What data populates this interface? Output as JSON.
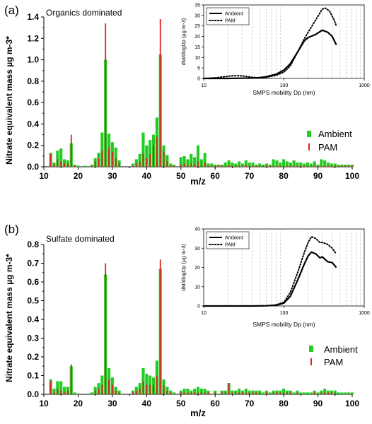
{
  "figure": {
    "panels": [
      {
        "panel_label": "(a)",
        "subtitle": "Organics dominated",
        "chart_data": {
          "type": "bar",
          "xlabel": "m/z",
          "ylabel": "Nitrate equivalent mass µg m-3*",
          "xlim": [
            10,
            100
          ],
          "ylim": [
            0,
            1.4
          ],
          "x_ticks": [
            10,
            20,
            30,
            40,
            50,
            60,
            70,
            80,
            90,
            100
          ],
          "y_ticks": [
            0.0,
            0.2,
            0.4,
            0.6,
            0.8,
            1.0,
            1.2,
            1.4
          ],
          "legend": {
            "placement": "right",
            "entries": [
              "Ambient",
              "PAM"
            ]
          },
          "x": [
            12,
            13,
            14,
            15,
            16,
            17,
            18,
            19,
            20,
            22,
            24,
            25,
            26,
            27,
            28,
            29,
            30,
            31,
            32,
            36,
            37,
            38,
            39,
            40,
            41,
            42,
            43,
            44,
            45,
            46,
            47,
            48,
            50,
            51,
            52,
            53,
            54,
            55,
            56,
            57,
            58,
            59,
            60,
            61,
            62,
            63,
            64,
            65,
            66,
            67,
            68,
            69,
            70,
            71,
            72,
            73,
            74,
            75,
            76,
            77,
            78,
            79,
            80,
            81,
            82,
            83,
            84,
            85,
            86,
            87,
            88,
            89,
            90,
            91,
            92,
            93,
            94,
            95,
            96,
            97,
            98,
            99,
            100
          ],
          "series": [
            {
              "name": "Ambient",
              "color": "#22cc22",
              "values": [
                0.13,
                0.04,
                0.15,
                0.17,
                0.07,
                0.06,
                0.22,
                0.02,
                0.01,
                0.01,
                0.02,
                0.08,
                0.13,
                0.32,
                1.0,
                0.31,
                0.23,
                0.18,
                0.06,
                0.03,
                0.07,
                0.12,
                0.32,
                0.2,
                0.25,
                0.3,
                0.46,
                1.05,
                0.2,
                0.11,
                0.03,
                0.02,
                0.09,
                0.1,
                0.07,
                0.12,
                0.09,
                0.2,
                0.07,
                0.13,
                0.03,
                0.03,
                0.02,
                0.02,
                0.02,
                0.04,
                0.06,
                0.04,
                0.03,
                0.05,
                0.03,
                0.06,
                0.04,
                0.04,
                0.02,
                0.03,
                0.02,
                0.03,
                0.02,
                0.07,
                0.06,
                0.04,
                0.07,
                0.05,
                0.04,
                0.06,
                0.04,
                0.04,
                0.03,
                0.04,
                0.03,
                0.05,
                0.02,
                0.07,
                0.06,
                0.04,
                0.03,
                0.03,
                0.02,
                0.02,
                0.02,
                0.02,
                0.02
              ]
            },
            {
              "name": "PAM",
              "color": "#dd2222",
              "values": [
                0.12,
                0.02,
                0.07,
                0.05,
                0.03,
                0.03,
                0.3,
                0.01,
                0.0,
                0.0,
                0.01,
                0.05,
                0.08,
                0.15,
                1.34,
                0.18,
                0.14,
                0.08,
                0.03,
                0.01,
                0.03,
                0.05,
                0.12,
                0.08,
                0.12,
                0.2,
                0.28,
                1.38,
                0.14,
                0.05,
                0.01,
                0.01,
                0.02,
                0.03,
                0.02,
                0.03,
                0.02,
                0.05,
                0.02,
                0.04,
                0.01,
                0.01,
                0.01,
                0.01,
                0.01,
                0.01,
                0.02,
                0.01,
                0.01,
                0.01,
                0.01,
                0.02,
                0.01,
                0.01,
                0.01,
                0.01,
                0.01,
                0.01,
                0.01,
                0.01,
                0.01,
                0.01,
                0.01,
                0.01,
                0.01,
                0.01,
                0.01,
                0.01,
                0.01,
                0.01,
                0.01,
                0.01,
                0.01,
                0.01,
                0.01,
                0.01,
                0.01,
                0.01,
                0.01,
                0.01,
                0.01,
                0.01,
                0.01
              ]
            }
          ]
        },
        "inset": {
          "type": "line",
          "xlabel": "SMPS mobility Dp (nm)",
          "ylabel": "dM/dlogDp (µg m-3)",
          "xscale": "log",
          "xlim": [
            10,
            1000
          ],
          "ylim": [
            0,
            35
          ],
          "x_ticks": [
            "10",
            "100",
            "1000"
          ],
          "y_ticks": [
            0,
            5,
            10,
            15,
            20,
            25,
            30,
            35
          ],
          "grid": "vertical-dashed",
          "legend": {
            "placement": "top-left",
            "entries": [
              "Ambient",
              "PAM"
            ]
          },
          "series": [
            {
              "name": "Ambient",
              "style": "solid",
              "x": [
                10,
                14,
                20,
                30,
                40,
                50,
                60,
                80,
                100,
                120,
                150,
                180,
                200,
                250,
                300,
                350,
                400,
                450
              ],
              "y": [
                0,
                0,
                0,
                0.1,
                0.2,
                0.4,
                0.8,
                2.0,
                4.0,
                7.0,
                13.0,
                18.0,
                19.5,
                21.0,
                23.0,
                22.0,
                20.0,
                16.0
              ]
            },
            {
              "name": "PAM",
              "style": "dotted",
              "x": [
                10,
                14,
                18,
                22,
                26,
                30,
                35,
                40,
                50,
                60,
                80,
                100,
                120,
                150,
                180,
                200,
                250,
                300,
                330,
                370,
                420,
                450
              ],
              "y": [
                0,
                0.3,
                0.8,
                1.2,
                1.3,
                1.2,
                0.9,
                0.5,
                0.3,
                0.5,
                1.5,
                3.0,
                6.0,
                13.0,
                19.0,
                22.0,
                28.0,
                33.0,
                33.5,
                32.0,
                28.0,
                25.0
              ]
            }
          ]
        }
      },
      {
        "panel_label": "(b)",
        "subtitle": "Sulfate dominated",
        "chart_data": {
          "type": "bar",
          "xlabel": "m/z",
          "ylabel": "Nitrate equivalent mass µg m-3*",
          "xlim": [
            10,
            100
          ],
          "ylim": [
            0,
            0.8
          ],
          "x_ticks": [
            10,
            20,
            30,
            40,
            50,
            60,
            70,
            80,
            90,
            100
          ],
          "y_ticks": [
            0.0,
            0.1,
            0.2,
            0.3,
            0.4,
            0.5,
            0.6,
            0.7,
            0.8
          ],
          "legend": {
            "placement": "right",
            "entries": [
              "Ambient",
              "PAM"
            ]
          },
          "x": [
            12,
            13,
            14,
            15,
            16,
            17,
            18,
            19,
            24,
            25,
            26,
            27,
            28,
            29,
            30,
            31,
            32,
            36,
            37,
            38,
            39,
            40,
            41,
            42,
            43,
            44,
            45,
            46,
            47,
            48,
            50,
            51,
            52,
            53,
            54,
            55,
            56,
            57,
            58,
            60,
            62,
            63,
            64,
            65,
            66,
            67,
            68,
            69,
            70,
            71,
            72,
            73,
            74,
            75,
            76,
            77,
            78,
            79,
            80,
            81,
            82,
            83,
            84,
            85,
            86,
            87,
            88,
            89,
            90,
            91,
            92,
            93,
            94,
            95,
            96,
            97,
            98,
            99,
            100
          ],
          "series": [
            {
              "name": "Ambient",
              "color": "#22cc22",
              "values": [
                0.08,
                0.03,
                0.07,
                0.07,
                0.04,
                0.04,
                0.15,
                0.01,
                0.01,
                0.04,
                0.06,
                0.1,
                0.64,
                0.14,
                0.09,
                0.04,
                0.02,
                0.02,
                0.04,
                0.06,
                0.14,
                0.11,
                0.1,
                0.09,
                0.18,
                0.67,
                0.08,
                0.04,
                0.02,
                0.01,
                0.02,
                0.03,
                0.03,
                0.02,
                0.03,
                0.04,
                0.03,
                0.03,
                0.02,
                0.02,
                0.02,
                0.02,
                0.06,
                0.02,
                0.02,
                0.03,
                0.02,
                0.03,
                0.02,
                0.02,
                0.02,
                0.02,
                0.01,
                0.02,
                0.01,
                0.02,
                0.02,
                0.02,
                0.03,
                0.02,
                0.02,
                0.01,
                0.02,
                0.01,
                0.01,
                0.01,
                0.01,
                0.02,
                0.01,
                0.02,
                0.03,
                0.02,
                0.02,
                0.02,
                0.01,
                0.01,
                0.01,
                0.01,
                0.01
              ]
            },
            {
              "name": "PAM",
              "color": "#dd2222",
              "values": [
                0.07,
                0.01,
                0.03,
                0.02,
                0.01,
                0.02,
                0.16,
                0.0,
                0.0,
                0.02,
                0.03,
                0.05,
                0.7,
                0.08,
                0.05,
                0.02,
                0.01,
                0.01,
                0.02,
                0.03,
                0.07,
                0.05,
                0.05,
                0.05,
                0.1,
                0.72,
                0.05,
                0.02,
                0.01,
                0.0,
                0.01,
                0.01,
                0.01,
                0.01,
                0.01,
                0.01,
                0.01,
                0.01,
                0.01,
                0.01,
                0.01,
                0.01,
                0.06,
                0.01,
                0.01,
                0.01,
                0.01,
                0.01,
                0.01,
                0.01,
                0.01,
                0.01,
                0.0,
                0.01,
                0.0,
                0.01,
                0.01,
                0.01,
                0.01,
                0.01,
                0.01,
                0.0,
                0.01,
                0.0,
                0.0,
                0.0,
                0.0,
                0.01,
                0.0,
                0.01,
                0.01,
                0.01,
                0.01,
                0.01,
                0.0,
                0.0,
                0.0,
                0.0,
                0.0
              ]
            }
          ]
        },
        "inset": {
          "type": "line",
          "xlabel": "SMPS mobility Dp (nm)",
          "ylabel": "dM/dlogDp (µg m-3)",
          "xscale": "log",
          "xlim": [
            10,
            1000
          ],
          "ylim": [
            0,
            40
          ],
          "x_ticks": [
            "10",
            "100",
            "1000"
          ],
          "y_ticks": [
            0,
            10,
            20,
            30,
            40
          ],
          "grid": "vertical-dashed",
          "legend": {
            "placement": "top-left",
            "entries": [
              "Ambient",
              "PAM"
            ]
          },
          "series": [
            {
              "name": "Ambient",
              "style": "solid",
              "x": [
                10,
                20,
                40,
                60,
                80,
                100,
                120,
                150,
                180,
                200,
                220,
                250,
                280,
                300,
                350,
                400,
                450
              ],
              "y": [
                0,
                0,
                0,
                0.1,
                0.4,
                1.5,
                5.0,
                14.0,
                22.0,
                26.0,
                28.0,
                27.0,
                25.0,
                25.5,
                23.0,
                22.5,
                20.0
              ]
            },
            {
              "name": "PAM",
              "style": "dotted",
              "x": [
                10,
                20,
                40,
                60,
                80,
                100,
                120,
                150,
                180,
                200,
                220,
                250,
                280,
                300,
                350,
                400,
                450
              ],
              "y": [
                0,
                0,
                0,
                0.1,
                0.6,
                2.0,
                7.0,
                18.0,
                28.0,
                33.0,
                36.0,
                35.0,
                33.0,
                33.0,
                32.0,
                30.0,
                27.0
              ]
            }
          ]
        }
      }
    ]
  }
}
